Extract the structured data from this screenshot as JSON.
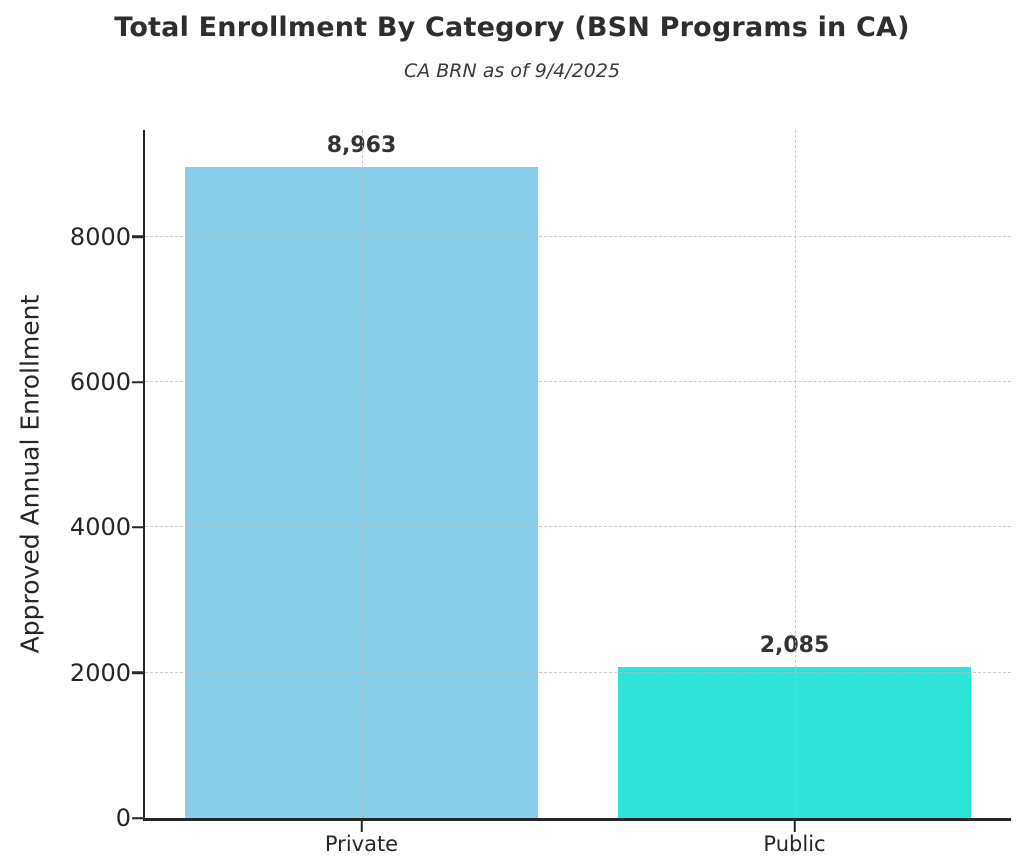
{
  "chart_data": {
    "type": "bar",
    "title": "Total Enrollment By Category (BSN Programs in CA)",
    "subtitle": "CA BRN as of 9/4/2025",
    "ylabel": "Approved Annual Enrollment",
    "xlabel": "",
    "categories": [
      "Private",
      "Public"
    ],
    "values": [
      8963,
      2085
    ],
    "value_labels": [
      "8,963",
      "2,085"
    ],
    "bar_colors": [
      "#87CEEB",
      "#2EE3D8"
    ],
    "yticks": [
      0,
      2000,
      4000,
      6000,
      8000
    ],
    "ytick_labels": [
      "0",
      "2000",
      "4000",
      "6000",
      "8000"
    ],
    "ylim": [
      0,
      9472
    ],
    "grid": "dashed-both-axes-over-bars",
    "legend": "none",
    "spines": [
      "left",
      "bottom"
    ],
    "text_color": "#262626",
    "title_color": "#2e2e2e"
  }
}
